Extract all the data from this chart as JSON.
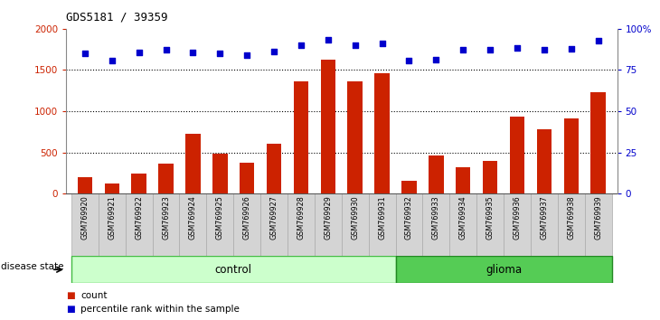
{
  "title": "GDS5181 / 39359",
  "samples": [
    "GSM769920",
    "GSM769921",
    "GSM769922",
    "GSM769923",
    "GSM769924",
    "GSM769925",
    "GSM769926",
    "GSM769927",
    "GSM769928",
    "GSM769929",
    "GSM769930",
    "GSM769931",
    "GSM769932",
    "GSM769933",
    "GSM769934",
    "GSM769935",
    "GSM769936",
    "GSM769937",
    "GSM769938",
    "GSM769939"
  ],
  "counts": [
    200,
    120,
    240,
    360,
    730,
    490,
    380,
    610,
    1360,
    1620,
    1360,
    1460,
    150,
    460,
    320,
    400,
    930,
    780,
    910,
    1230
  ],
  "percentile_raw": [
    1700,
    1610,
    1710,
    1750,
    1710,
    1700,
    1680,
    1720,
    1800,
    1870,
    1800,
    1820,
    1610,
    1620,
    1750,
    1750,
    1770,
    1750,
    1760,
    1860
  ],
  "bar_color": "#cc2200",
  "dot_color": "#0000cc",
  "bg_color": "#ffffff",
  "ylim": [
    0,
    2000
  ],
  "yticks": [
    0,
    500,
    1000,
    1500,
    2000
  ],
  "ytick_labels_left": [
    "0",
    "500",
    "1000",
    "1500",
    "2000"
  ],
  "ytick_labels_right": [
    "0",
    "25",
    "50",
    "75",
    "100%"
  ],
  "control_count": 12,
  "glioma_count": 8,
  "control_label": "control",
  "glioma_label": "glioma",
  "control_color": "#ccffcc",
  "glioma_color": "#55cc55",
  "disease_state_label": "disease state",
  "legend_count_label": "count",
  "legend_pct_label": "percentile rank within the sample",
  "bar_color_legend": "#cc2200",
  "dot_color_legend": "#0000cc",
  "axis_color": "#888888",
  "left_tick_color": "#cc2200",
  "right_tick_color": "#0000cc"
}
